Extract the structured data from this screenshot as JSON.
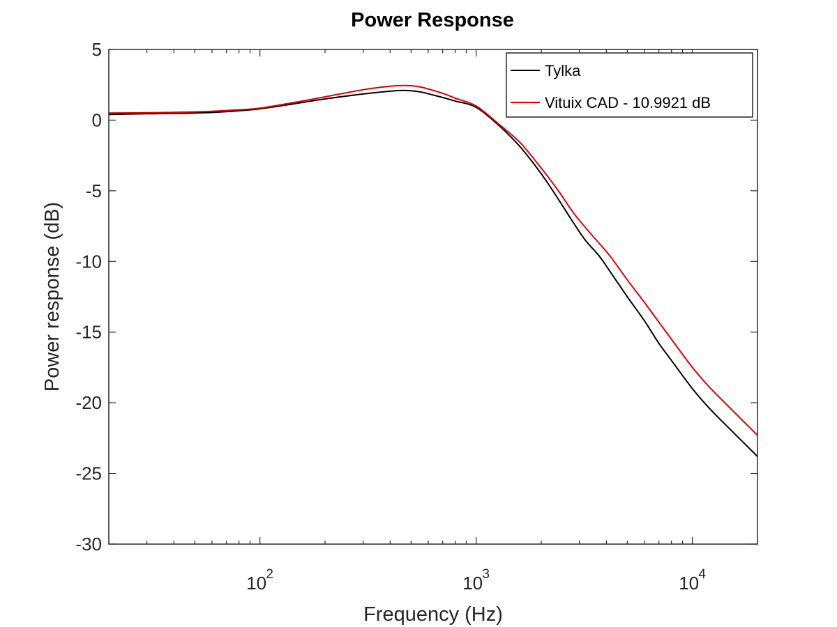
{
  "chart_data": {
    "type": "line",
    "title": "Power Response",
    "xlabel": "Frequency (Hz)",
    "ylabel": "Power response (dB)",
    "xscale": "log",
    "xlim": [
      20,
      20000
    ],
    "ylim": [
      -30,
      5
    ],
    "grid": false,
    "legend_position": "top-right",
    "yticks": [
      5,
      0,
      -5,
      -10,
      -15,
      -20,
      -25,
      -30
    ],
    "ytick_labels": [
      "5",
      "0",
      "-5",
      "-10",
      "-15",
      "-20",
      "-25",
      "-30"
    ],
    "xticks": [
      100,
      1000,
      10000
    ],
    "xtick_labels": [
      {
        "base": "10",
        "exp": "2"
      },
      {
        "base": "10",
        "exp": "3"
      },
      {
        "base": "10",
        "exp": "4"
      }
    ],
    "series": [
      {
        "name": "Tylka",
        "color": "#000000",
        "x": [
          20,
          30,
          50,
          70,
          100,
          150,
          200,
          300,
          400,
          470,
          550,
          700,
          800,
          1000,
          1300,
          1600,
          2000,
          2400,
          2800,
          3200,
          3700,
          4200,
          5000,
          6000,
          7000,
          8000,
          10000,
          12000,
          15000,
          20000
        ],
        "y": [
          0.4,
          0.45,
          0.5,
          0.6,
          0.8,
          1.2,
          1.5,
          1.85,
          2.05,
          2.1,
          2.0,
          1.6,
          1.35,
          0.9,
          -0.5,
          -1.9,
          -3.8,
          -5.6,
          -7.2,
          -8.5,
          -9.6,
          -10.8,
          -12.5,
          -14.2,
          -15.8,
          -17.0,
          -19.0,
          -20.4,
          -21.9,
          -23.8
        ]
      },
      {
        "name": "Vituix CAD - 10.9921 dB",
        "color": "#e00000",
        "x": [
          20,
          30,
          50,
          70,
          100,
          150,
          200,
          300,
          400,
          470,
          550,
          700,
          800,
          1000,
          1300,
          1600,
          2000,
          2400,
          2800,
          3200,
          3700,
          4200,
          5000,
          6000,
          7000,
          8000,
          10000,
          12000,
          15000,
          20000
        ],
        "y": [
          0.5,
          0.52,
          0.58,
          0.68,
          0.85,
          1.3,
          1.65,
          2.15,
          2.4,
          2.45,
          2.35,
          1.9,
          1.55,
          1.0,
          -0.4,
          -1.6,
          -3.4,
          -5.0,
          -6.5,
          -7.6,
          -8.7,
          -9.7,
          -11.3,
          -12.9,
          -14.3,
          -15.5,
          -17.5,
          -18.9,
          -20.4,
          -22.3
        ]
      }
    ]
  }
}
